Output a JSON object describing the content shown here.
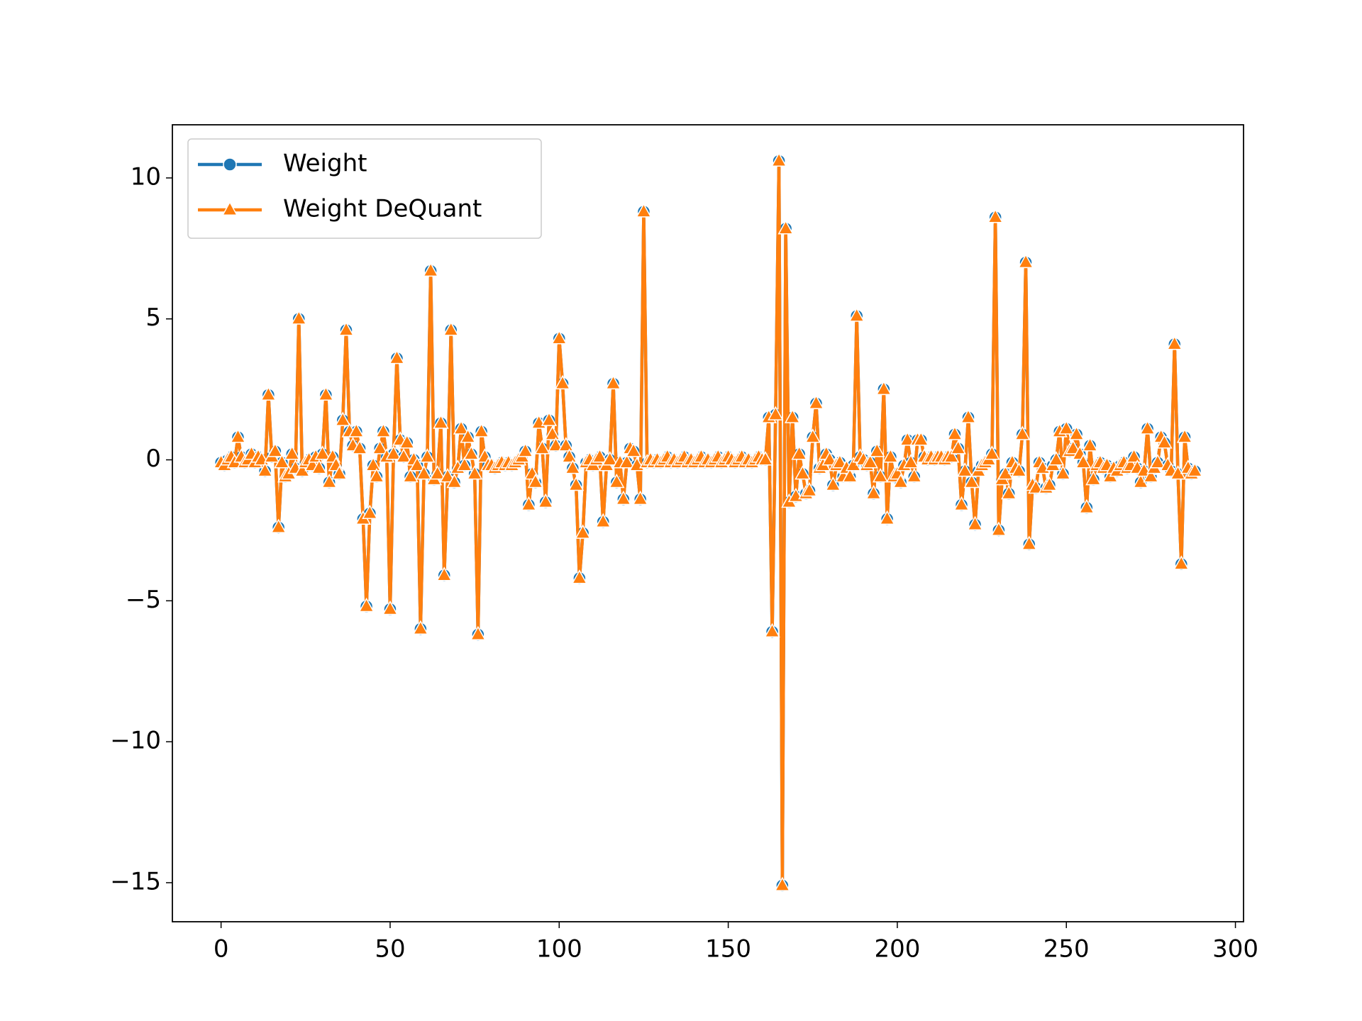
{
  "chart_data": {
    "type": "line",
    "x": [
      0,
      1,
      2,
      3,
      4,
      5,
      6,
      7,
      8,
      9,
      10,
      11,
      12,
      13,
      14,
      15,
      16,
      17,
      18,
      19,
      20,
      21,
      22,
      23,
      24,
      25,
      26,
      27,
      28,
      29,
      30,
      31,
      32,
      33,
      34,
      35,
      36,
      37,
      38,
      39,
      40,
      41,
      42,
      43,
      44,
      45,
      46,
      47,
      48,
      49,
      50,
      51,
      52,
      53,
      54,
      55,
      56,
      57,
      58,
      59,
      60,
      61,
      62,
      63,
      64,
      65,
      66,
      67,
      68,
      69,
      70,
      71,
      72,
      73,
      74,
      75,
      76,
      77,
      78,
      79,
      80,
      81,
      82,
      83,
      84,
      85,
      86,
      87,
      88,
      89,
      90,
      91,
      92,
      93,
      94,
      95,
      96,
      97,
      98,
      99,
      100,
      101,
      102,
      103,
      104,
      105,
      106,
      107,
      108,
      109,
      110,
      111,
      112,
      113,
      114,
      115,
      116,
      117,
      118,
      119,
      120,
      121,
      122,
      123,
      124,
      125,
      126,
      127,
      128,
      129,
      130,
      131,
      132,
      133,
      134,
      135,
      136,
      137,
      138,
      139,
      140,
      141,
      142,
      143,
      144,
      145,
      146,
      147,
      148,
      149,
      150,
      151,
      152,
      153,
      154,
      155,
      156,
      157,
      158,
      159,
      160,
      161,
      162,
      163,
      164,
      165,
      166,
      167,
      168,
      169,
      170,
      171,
      172,
      173,
      174,
      175,
      176,
      177,
      178,
      179,
      180,
      181,
      182,
      183,
      184,
      185,
      186,
      187,
      188,
      189,
      190,
      191,
      192,
      193,
      194,
      195,
      196,
      197,
      198,
      199,
      200,
      201,
      202,
      203,
      204,
      205,
      206,
      207,
      208,
      209,
      210,
      211,
      212,
      213,
      214,
      215,
      216,
      217,
      218,
      219,
      220,
      221,
      222,
      223,
      224,
      225,
      226,
      227,
      228,
      229,
      230,
      231,
      232,
      233,
      234,
      235,
      236,
      237,
      238,
      239,
      240,
      241,
      242,
      243,
      244,
      245,
      246,
      247,
      248,
      249,
      250,
      251,
      252,
      253,
      254,
      255,
      256,
      257,
      258,
      259,
      260,
      261,
      262,
      263,
      264,
      265,
      266,
      267,
      268,
      269,
      270,
      271,
      272,
      273,
      274,
      275,
      276,
      277,
      278,
      279,
      280,
      281,
      282,
      283,
      284,
      285,
      286,
      287,
      288
    ],
    "series": [
      {
        "name": "Weight",
        "color": "#1f77b4",
        "marker": "circle",
        "values": [
          -0.1,
          -0.2,
          0,
          0.1,
          -0.1,
          0.8,
          0.1,
          -0.1,
          0,
          0.2,
          -0.1,
          0.1,
          0,
          -0.4,
          2.3,
          0.1,
          0.3,
          -2.4,
          -0.1,
          -0.6,
          -0.5,
          0.2,
          -0.3,
          5.0,
          -0.4,
          -0.1,
          0,
          -0.2,
          0.1,
          -0.3,
          0.2,
          2.3,
          -0.8,
          0.1,
          -0.2,
          -0.5,
          1.4,
          4.6,
          1.0,
          0.5,
          1.0,
          0.4,
          -2.1,
          -5.2,
          -1.9,
          -0.2,
          -0.6,
          0.4,
          1.0,
          0.1,
          -5.3,
          0.2,
          3.6,
          0.7,
          0.1,
          0.6,
          -0.6,
          0,
          -0.2,
          -6.0,
          -0.5,
          0.1,
          6.7,
          -0.7,
          -0.5,
          1.3,
          -4.1,
          -0.6,
          4.6,
          -0.8,
          -0.3,
          1.1,
          -0.2,
          0.8,
          0.2,
          -0.5,
          -6.2,
          1.0,
          0.1,
          -0.2,
          -0.2,
          -0.3,
          -0.2,
          -0.1,
          -0.2,
          -0.1,
          -0.2,
          -0.1,
          0,
          0.1,
          0.3,
          -1.6,
          -0.5,
          -0.8,
          1.3,
          0.4,
          -1.5,
          1.4,
          0.9,
          0.5,
          4.3,
          2.7,
          0.5,
          0.1,
          -0.3,
          -0.9,
          -4.2,
          -2.6,
          -0.1,
          0,
          -0.2,
          0,
          0.1,
          -2.2,
          -0.2,
          0,
          2.7,
          -0.8,
          -0.1,
          -1.4,
          -0.1,
          0.4,
          0.3,
          -0.2,
          -1.4,
          8.8,
          -0.1,
          0,
          -0.1,
          0,
          -0.1,
          0,
          0.1,
          -0.1,
          0,
          -0.1,
          0,
          0.1,
          -0.1,
          0,
          -0.1,
          0,
          0.1,
          -0.1,
          0,
          -0.1,
          0,
          0.1,
          -0.1,
          0,
          0.1,
          0,
          -0.1,
          0,
          0.1,
          -0.1,
          0,
          -0.1,
          0,
          0.1,
          0,
          0,
          1.5,
          -6.1,
          1.6,
          10.6,
          -15.1,
          8.2,
          -1.5,
          1.5,
          -1.3,
          0.2,
          -0.5,
          -1.2,
          -1.1,
          0.8,
          2.0,
          -0.3,
          -0.2,
          0.2,
          0,
          -0.9,
          -0.2,
          -0.1,
          -0.6,
          -0.3,
          -0.6,
          -0.2,
          5.1,
          0.1,
          0,
          -0.2,
          -0.1,
          -1.2,
          0.3,
          -0.6,
          2.5,
          -2.1,
          0.1,
          -0.6,
          -0.5,
          -0.8,
          -0.2,
          0.7,
          -0.1,
          -0.6,
          0.7,
          0.7,
          0.1,
          0,
          0.1,
          0,
          0.1,
          0.1,
          0,
          0.1,
          0.1,
          0.9,
          0.4,
          -1.6,
          -0.4,
          1.5,
          -0.8,
          -2.3,
          -0.4,
          -0.2,
          -0.1,
          0,
          0.2,
          8.6,
          -2.5,
          -0.7,
          -0.5,
          -1.2,
          -0.1,
          -0.3,
          -0.4,
          0.9,
          7.0,
          -3.0,
          -0.9,
          -1.0,
          -0.1,
          -0.3,
          -1.0,
          -0.9,
          -0.2,
          0,
          1.0,
          -0.5,
          1.1,
          0.3,
          0.4,
          0.9,
          0.2,
          -0.1,
          -1.7,
          0.5,
          -0.7,
          -0.2,
          -0.1,
          -0.3,
          -0.2,
          -0.6,
          -0.3,
          -0.4,
          -0.2,
          -0.1,
          -0.3,
          -0.2,
          0.1,
          -0.3,
          -0.8,
          -0.4,
          1.1,
          -0.6,
          -0.3,
          -0.1,
          0.8,
          0.6,
          -0.2,
          -0.4,
          4.1,
          -0.5,
          -3.7,
          0.8,
          -0.3,
          -0.5,
          -0.4
        ]
      },
      {
        "name": "Weight DeQuant",
        "color": "#ff7f0e",
        "marker": "triangle",
        "values": [
          -0.1,
          -0.2,
          0,
          0.1,
          -0.1,
          0.8,
          0.1,
          -0.1,
          0,
          0.2,
          -0.1,
          0.1,
          0,
          -0.4,
          2.3,
          0.1,
          0.3,
          -2.4,
          -0.1,
          -0.6,
          -0.5,
          0.2,
          -0.3,
          5.0,
          -0.4,
          -0.1,
          0,
          -0.2,
          0.1,
          -0.3,
          0.2,
          2.3,
          -0.8,
          0.1,
          -0.2,
          -0.5,
          1.4,
          4.6,
          1.0,
          0.5,
          1.0,
          0.4,
          -2.1,
          -5.2,
          -1.9,
          -0.2,
          -0.6,
          0.4,
          1.0,
          0.1,
          -5.3,
          0.2,
          3.6,
          0.7,
          0.1,
          0.6,
          -0.6,
          0,
          -0.2,
          -6.0,
          -0.5,
          0.1,
          6.7,
          -0.7,
          -0.5,
          1.3,
          -4.1,
          -0.6,
          4.6,
          -0.8,
          -0.3,
          1.1,
          -0.2,
          0.8,
          0.2,
          -0.5,
          -6.2,
          1.0,
          0.1,
          -0.2,
          -0.2,
          -0.3,
          -0.2,
          -0.1,
          -0.2,
          -0.1,
          -0.2,
          -0.1,
          0,
          0.1,
          0.3,
          -1.6,
          -0.5,
          -0.8,
          1.3,
          0.4,
          -1.5,
          1.4,
          0.9,
          0.5,
          4.3,
          2.7,
          0.5,
          0.1,
          -0.3,
          -0.9,
          -4.2,
          -2.6,
          -0.1,
          0,
          -0.2,
          0,
          0.1,
          -2.2,
          -0.2,
          0,
          2.7,
          -0.8,
          -0.1,
          -1.4,
          -0.1,
          0.4,
          0.3,
          -0.2,
          -1.4,
          8.8,
          -0.1,
          0,
          -0.1,
          0,
          -0.1,
          0,
          0.1,
          -0.1,
          0,
          -0.1,
          0,
          0.1,
          -0.1,
          0,
          -0.1,
          0,
          0.1,
          -0.1,
          0,
          -0.1,
          0,
          0.1,
          -0.1,
          0,
          0.1,
          0,
          -0.1,
          0,
          0.1,
          -0.1,
          0,
          -0.1,
          0,
          0.1,
          0,
          0,
          1.5,
          -6.1,
          1.6,
          10.6,
          -15.1,
          8.2,
          -1.5,
          1.5,
          -1.3,
          0.2,
          -0.5,
          -1.2,
          -1.1,
          0.8,
          2.0,
          -0.3,
          -0.2,
          0.2,
          0,
          -0.9,
          -0.2,
          -0.1,
          -0.6,
          -0.3,
          -0.6,
          -0.2,
          5.1,
          0.1,
          0,
          -0.2,
          -0.1,
          -1.2,
          0.3,
          -0.6,
          2.5,
          -2.1,
          0.1,
          -0.6,
          -0.5,
          -0.8,
          -0.2,
          0.7,
          -0.1,
          -0.6,
          0.7,
          0.7,
          0.1,
          0,
          0.1,
          0,
          0.1,
          0.1,
          0,
          0.1,
          0.1,
          0.9,
          0.4,
          -1.6,
          -0.4,
          1.5,
          -0.8,
          -2.3,
          -0.4,
          -0.2,
          -0.1,
          0,
          0.2,
          8.6,
          -2.5,
          -0.7,
          -0.5,
          -1.2,
          -0.1,
          -0.3,
          -0.4,
          0.9,
          7.0,
          -3.0,
          -0.9,
          -1.0,
          -0.1,
          -0.3,
          -1.0,
          -0.9,
          -0.2,
          0,
          1.0,
          -0.5,
          1.1,
          0.3,
          0.4,
          0.9,
          0.2,
          -0.1,
          -1.7,
          0.5,
          -0.7,
          -0.2,
          -0.1,
          -0.3,
          -0.2,
          -0.6,
          -0.3,
          -0.4,
          -0.2,
          -0.1,
          -0.3,
          -0.2,
          0.1,
          -0.3,
          -0.8,
          -0.4,
          1.1,
          -0.6,
          -0.3,
          -0.1,
          0.8,
          0.6,
          -0.2,
          -0.4,
          4.1,
          -0.5,
          -3.7,
          0.8,
          -0.3,
          -0.5,
          -0.4
        ]
      }
    ],
    "xlim": [
      -14.4,
      302.4
    ],
    "xticks": [
      0,
      50,
      100,
      150,
      200,
      250,
      300
    ],
    "ylim": [
      -16.385,
      11.885
    ],
    "yticks": [
      {
        "value": -15,
        "label": "−15"
      },
      {
        "value": -10,
        "label": "−10"
      },
      {
        "value": -5,
        "label": "−5"
      },
      0,
      5,
      10
    ],
    "grid": false,
    "legend": "upper left"
  }
}
